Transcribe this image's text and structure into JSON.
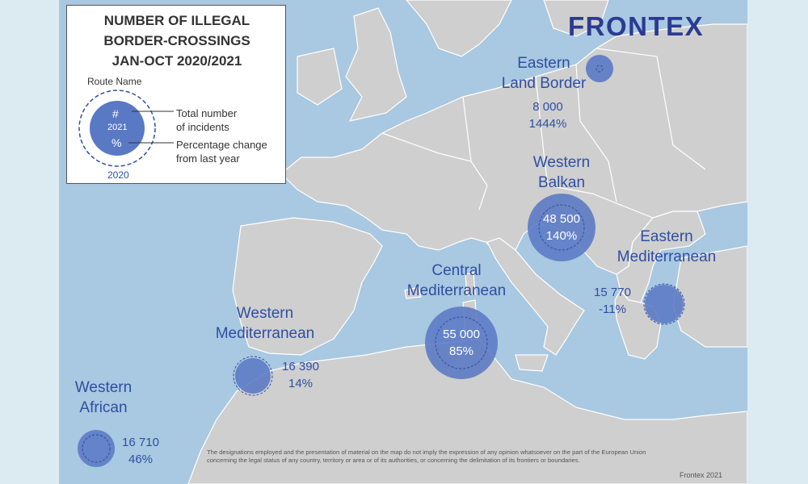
{
  "legend": {
    "title_lines": [
      "NUMBER OF ILLEGAL",
      "BORDER-CROSSINGS",
      "JAN-OCT 2020/2021"
    ],
    "route_name": "Route Name",
    "number_symbol": "#",
    "year_current": "2021",
    "percent_symbol": "%",
    "year_previous": "2020",
    "total_lines": [
      "Total number",
      "of incidents"
    ],
    "change_lines": [
      "Percentage change",
      "from last year"
    ]
  },
  "logo": {
    "text": "FRONTEX",
    "color": "#2b3a92"
  },
  "routes": {
    "eastern_land": {
      "name_lines": [
        "Eastern",
        "Land Border"
      ],
      "count": "8 000",
      "change": "1444%"
    },
    "western_balkan": {
      "name_lines": [
        "Western",
        "Balkan"
      ],
      "count": "48 500",
      "change": "140%"
    },
    "eastern_med": {
      "name_lines": [
        "Eastern",
        "Mediterranean"
      ],
      "count": "15 770",
      "change": "-11%"
    },
    "central_med": {
      "name_lines": [
        "Central",
        "Mediterranean"
      ],
      "count": "55 000",
      "change": "85%"
    },
    "western_med": {
      "name_lines": [
        "Western",
        "Mediterranean"
      ],
      "count": "16 390",
      "change": "14%"
    },
    "western_african": {
      "name_lines": [
        "Western",
        "African"
      ],
      "count": "16 710",
      "change": "46%"
    }
  },
  "disclaimer": "The designations employed and the presentation of material on the map do not imply the expression of any opinion whatsoever on the part of the European Union concerning the legal status of any country, territory or area or of its authorities, or concerning the delimitation of its frontiers or boundaries.",
  "credit": "Frontex 2021",
  "colors": {
    "sea": "#a9c8e1",
    "land": "#cfcfcf",
    "border": "#ffffff",
    "bubble": "#5a79c4",
    "text_blue": "#2e4fa3"
  }
}
